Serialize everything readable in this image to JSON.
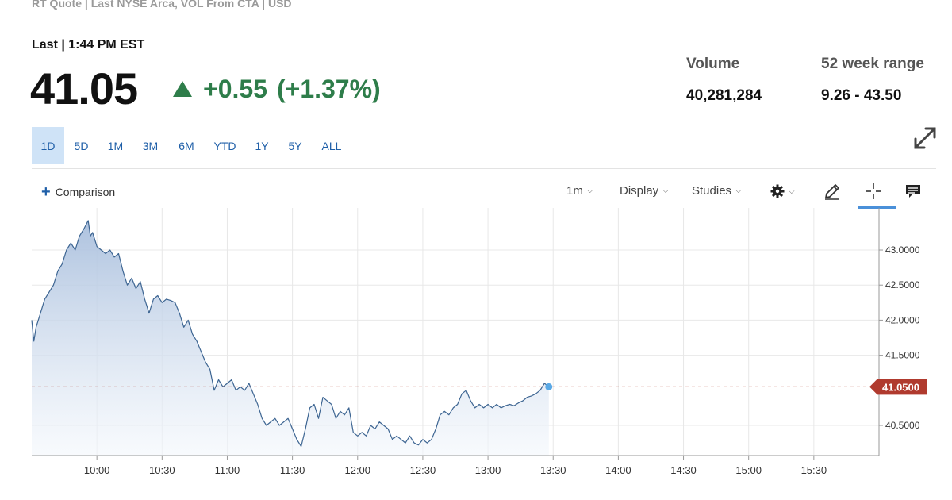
{
  "header": {
    "subhead": "RT Quote | Last NYSE Arca, VOL From CTA | USD",
    "last_label": "Last | 1:44 PM EST",
    "price": "41.05",
    "change": "+0.55",
    "change_pct": "(+1.37%)",
    "change_color": "#2e7d4a"
  },
  "stats": {
    "volume_label": "Volume",
    "volume_value": "40,281,284",
    "range_label": "52 week range",
    "range_value": "9.26 - 43.50"
  },
  "ranges": [
    "1D",
    "5D",
    "1M",
    "3M",
    "6M",
    "YTD",
    "1Y",
    "5Y",
    "ALL"
  ],
  "active_range": "1D",
  "toolbar": {
    "comparison_label": "Comparison",
    "interval_label": "1m",
    "display_label": "Display",
    "studies_label": "Studies",
    "icons": [
      "gear-icon",
      "pencil-icon",
      "crosshair-icon",
      "comment-icon",
      "expand-icon"
    ]
  },
  "chart_data": {
    "type": "area",
    "x_ticks": [
      "10:00",
      "10:30",
      "11:00",
      "11:30",
      "12:00",
      "12:30",
      "13:00",
      "13:30",
      "14:00",
      "14:30",
      "15:00",
      "15:30"
    ],
    "y_ticks": [
      "43.0000",
      "42.5000",
      "42.0000",
      "41.5000",
      "40.5000"
    ],
    "last_price_label": "41.0500",
    "last_price": 41.05,
    "ylim": [
      40.07,
      43.6
    ],
    "x_range_minutes": [
      570,
      960
    ],
    "line_color": "#3d6592",
    "area_color": "#b5c8e2",
    "marker_color": "#b03a2e",
    "grid": true,
    "series": [
      {
        "values": [
          [
            570,
            42.0
          ],
          [
            571,
            41.7
          ],
          [
            572,
            41.9
          ],
          [
            574,
            42.1
          ],
          [
            576,
            42.3
          ],
          [
            578,
            42.4
          ],
          [
            580,
            42.5
          ],
          [
            582,
            42.7
          ],
          [
            584,
            42.8
          ],
          [
            586,
            43.0
          ],
          [
            588,
            43.1
          ],
          [
            590,
            43.0
          ],
          [
            592,
            43.2
          ],
          [
            594,
            43.3
          ],
          [
            596,
            43.42
          ],
          [
            597,
            43.2
          ],
          [
            598,
            43.25
          ],
          [
            600,
            43.05
          ],
          [
            602,
            43.0
          ],
          [
            604,
            42.95
          ],
          [
            606,
            43.0
          ],
          [
            608,
            42.9
          ],
          [
            610,
            42.95
          ],
          [
            612,
            42.7
          ],
          [
            614,
            42.5
          ],
          [
            616,
            42.6
          ],
          [
            618,
            42.45
          ],
          [
            620,
            42.55
          ],
          [
            622,
            42.3
          ],
          [
            624,
            42.1
          ],
          [
            626,
            42.3
          ],
          [
            628,
            42.35
          ],
          [
            630,
            42.25
          ],
          [
            632,
            42.3
          ],
          [
            634,
            42.28
          ],
          [
            636,
            42.25
          ],
          [
            638,
            42.1
          ],
          [
            640,
            41.9
          ],
          [
            642,
            42.0
          ],
          [
            644,
            41.8
          ],
          [
            646,
            41.7
          ],
          [
            648,
            41.55
          ],
          [
            650,
            41.4
          ],
          [
            652,
            41.3
          ],
          [
            654,
            41.0
          ],
          [
            656,
            41.15
          ],
          [
            658,
            41.05
          ],
          [
            660,
            41.1
          ],
          [
            662,
            41.15
          ],
          [
            664,
            41.0
          ],
          [
            666,
            41.05
          ],
          [
            668,
            41.0
          ],
          [
            670,
            41.1
          ],
          [
            672,
            40.95
          ],
          [
            674,
            40.8
          ],
          [
            676,
            40.6
          ],
          [
            678,
            40.5
          ],
          [
            680,
            40.55
          ],
          [
            682,
            40.6
          ],
          [
            684,
            40.5
          ],
          [
            686,
            40.55
          ],
          [
            688,
            40.6
          ],
          [
            690,
            40.45
          ],
          [
            692,
            40.3
          ],
          [
            694,
            40.2
          ],
          [
            696,
            40.45
          ],
          [
            698,
            40.75
          ],
          [
            700,
            40.8
          ],
          [
            702,
            40.6
          ],
          [
            704,
            40.9
          ],
          [
            706,
            40.85
          ],
          [
            708,
            40.8
          ],
          [
            710,
            40.6
          ],
          [
            712,
            40.7
          ],
          [
            714,
            40.65
          ],
          [
            716,
            40.75
          ],
          [
            718,
            40.4
          ],
          [
            720,
            40.35
          ],
          [
            722,
            40.4
          ],
          [
            724,
            40.35
          ],
          [
            726,
            40.5
          ],
          [
            728,
            40.45
          ],
          [
            730,
            40.55
          ],
          [
            732,
            40.5
          ],
          [
            734,
            40.45
          ],
          [
            736,
            40.3
          ],
          [
            738,
            40.35
          ],
          [
            740,
            40.3
          ],
          [
            742,
            40.25
          ],
          [
            744,
            40.35
          ],
          [
            746,
            40.25
          ],
          [
            748,
            40.22
          ],
          [
            750,
            40.3
          ],
          [
            752,
            40.25
          ],
          [
            754,
            40.3
          ],
          [
            756,
            40.45
          ],
          [
            758,
            40.65
          ],
          [
            760,
            40.7
          ],
          [
            762,
            40.65
          ],
          [
            764,
            40.75
          ],
          [
            766,
            40.8
          ],
          [
            768,
            40.95
          ],
          [
            770,
            41.0
          ],
          [
            772,
            40.85
          ],
          [
            774,
            40.75
          ],
          [
            776,
            40.8
          ],
          [
            778,
            40.75
          ],
          [
            780,
            40.8
          ],
          [
            782,
            40.75
          ],
          [
            784,
            40.8
          ],
          [
            786,
            40.75
          ],
          [
            788,
            40.78
          ],
          [
            790,
            40.8
          ],
          [
            792,
            40.78
          ],
          [
            794,
            40.82
          ],
          [
            796,
            40.85
          ],
          [
            798,
            40.9
          ],
          [
            800,
            40.92
          ],
          [
            802,
            40.95
          ],
          [
            804,
            41.0
          ],
          [
            806,
            41.1
          ],
          [
            808,
            41.05
          ]
        ]
      }
    ]
  }
}
